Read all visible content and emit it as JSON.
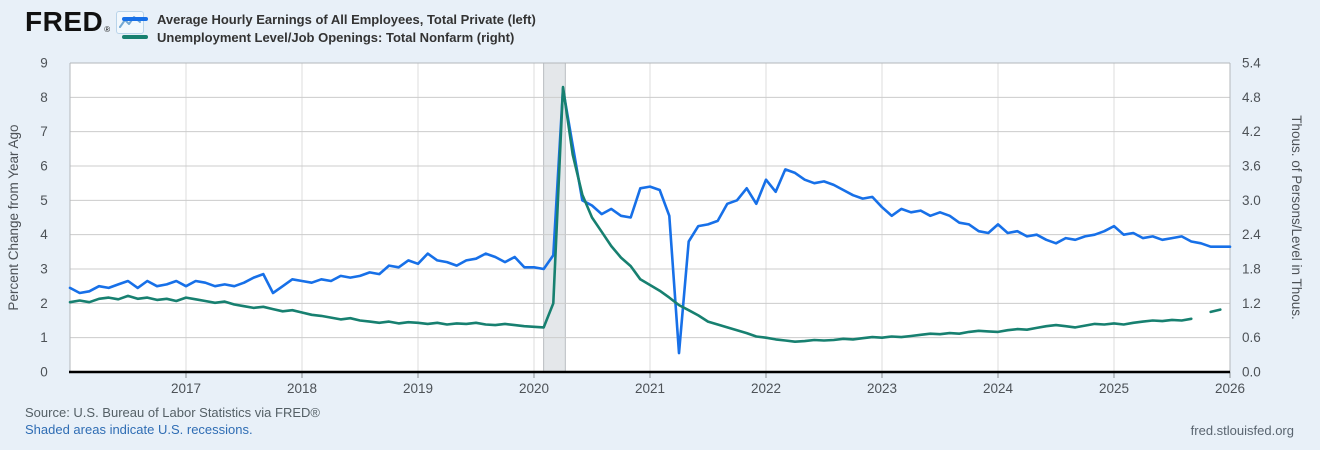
{
  "logo": {
    "text": "FRED",
    "registered": "®"
  },
  "legend": {
    "items": [
      {
        "label": "Average Hourly Earnings of All Employees, Total Private (left)",
        "color": "#1770e8"
      },
      {
        "label": "Unemployment Level/Job Openings: Total Nonfarm (right)",
        "color": "#178070"
      }
    ]
  },
  "footer": {
    "source": "Source: U.S. Bureau of Labor Statistics via FRED®",
    "recession_note": "Shaded areas indicate U.S. recessions.",
    "site": "fred.stlouisfed.org"
  },
  "colors": {
    "background": "#e8f0f8",
    "plot_background": "#ffffff",
    "blue_series": "#1770e8",
    "green_series": "#178070",
    "recession_fill": "#e4e7ea",
    "recession_edge": "#b8bcc0",
    "grid_h": "#cccccc",
    "grid_v": "#dddddd",
    "plot_border": "#b3b7bb",
    "axis_line": "#000000",
    "tick_text": "#4d5257",
    "link_blue": "#2f6db4"
  },
  "chart_data": {
    "type": "line",
    "x_start": 2016.0,
    "x_end": 2026.0,
    "x_ticks": [
      2017,
      2018,
      2019,
      2020,
      2021,
      2022,
      2023,
      2024,
      2025,
      2026
    ],
    "left_axis": {
      "label": "Percent Change from Year Ago",
      "min": 0,
      "max": 9,
      "ticks": [
        0,
        1,
        2,
        3,
        4,
        5,
        6,
        7,
        8,
        9
      ]
    },
    "right_axis": {
      "label": "Thous. of Persons/Level in Thous.",
      "min": 0,
      "max": 5.4,
      "ticks": [
        0.0,
        0.6,
        1.2,
        1.8,
        2.4,
        3.0,
        3.6,
        4.2,
        4.8,
        5.4
      ]
    },
    "recession_band": {
      "start": 2020.083,
      "end": 2020.27
    },
    "grid": true,
    "legend_position": "top-left",
    "series": [
      {
        "name": "Average Hourly Earnings of All Employees, Total Private (left)",
        "axis": "left",
        "color": "#1770e8",
        "start": "2016-01",
        "frequency": "monthly",
        "values": [
          2.45,
          2.3,
          2.35,
          2.5,
          2.45,
          2.55,
          2.65,
          2.45,
          2.65,
          2.5,
          2.55,
          2.65,
          2.5,
          2.65,
          2.6,
          2.5,
          2.55,
          2.5,
          2.6,
          2.75,
          2.85,
          2.3,
          2.5,
          2.7,
          2.65,
          2.6,
          2.7,
          2.65,
          2.8,
          2.75,
          2.8,
          2.9,
          2.85,
          3.1,
          3.05,
          3.25,
          3.15,
          3.45,
          3.25,
          3.2,
          3.1,
          3.25,
          3.3,
          3.45,
          3.35,
          3.2,
          3.35,
          3.05,
          3.05,
          3.0,
          3.4,
          8.25,
          6.6,
          5.0,
          4.85,
          4.6,
          4.75,
          4.55,
          4.5,
          5.35,
          5.4,
          5.3,
          4.55,
          0.55,
          3.8,
          4.25,
          4.3,
          4.4,
          4.9,
          5.0,
          5.35,
          4.9,
          5.6,
          5.25,
          5.9,
          5.8,
          5.6,
          5.5,
          5.55,
          5.45,
          5.3,
          5.15,
          5.05,
          5.1,
          4.8,
          4.55,
          4.75,
          4.65,
          4.7,
          4.55,
          4.65,
          4.55,
          4.35,
          4.3,
          4.1,
          4.05,
          4.3,
          4.05,
          4.1,
          3.95,
          4.0,
          3.85,
          3.75,
          3.9,
          3.85,
          3.95,
          4.0,
          4.1,
          4.25,
          4.0,
          4.05,
          3.9,
          3.95,
          3.85,
          3.9,
          3.95,
          3.8,
          3.75,
          3.65,
          3.65,
          3.65
        ]
      },
      {
        "name": "Unemployment Level/Job Openings: Total Nonfarm (right)",
        "axis": "right",
        "color": "#178070",
        "start": "2016-01",
        "frequency": "monthly",
        "values": [
          1.22,
          1.25,
          1.22,
          1.28,
          1.3,
          1.27,
          1.33,
          1.28,
          1.3,
          1.26,
          1.28,
          1.24,
          1.3,
          1.27,
          1.24,
          1.21,
          1.23,
          1.18,
          1.15,
          1.12,
          1.14,
          1.1,
          1.06,
          1.08,
          1.04,
          1.0,
          0.98,
          0.95,
          0.92,
          0.94,
          0.9,
          0.88,
          0.86,
          0.88,
          0.85,
          0.87,
          0.86,
          0.84,
          0.86,
          0.83,
          0.85,
          0.84,
          0.86,
          0.83,
          0.82,
          0.84,
          0.82,
          0.8,
          0.79,
          0.78,
          1.2,
          4.98,
          3.8,
          3.1,
          2.7,
          2.45,
          2.2,
          2.0,
          1.85,
          1.62,
          1.52,
          1.42,
          1.3,
          1.17,
          1.08,
          0.99,
          0.88,
          0.83,
          0.78,
          0.73,
          0.68,
          0.62,
          0.6,
          0.57,
          0.55,
          0.53,
          0.54,
          0.56,
          0.55,
          0.56,
          0.58,
          0.57,
          0.59,
          0.61,
          0.6,
          0.62,
          0.61,
          0.63,
          0.65,
          0.67,
          0.66,
          0.68,
          0.67,
          0.7,
          0.72,
          0.71,
          0.7,
          0.73,
          0.75,
          0.74,
          0.77,
          0.8,
          0.82,
          0.8,
          0.78,
          0.81,
          0.84,
          0.83,
          0.85,
          0.83,
          0.86,
          0.88,
          0.9,
          0.89,
          0.91,
          0.9,
          0.93,
          null,
          1.05,
          1.09
        ]
      }
    ]
  }
}
